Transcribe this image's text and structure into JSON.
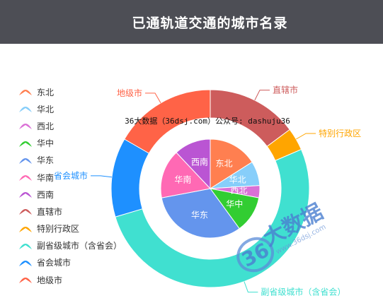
{
  "header": {
    "title": "已通轨道交通的城市名录"
  },
  "watermark": {
    "text": "36大数据（36dsj.com）公众号: dashuju36",
    "logo_number": "36",
    "logo_text": "大数据",
    "logo_url": "www.36dsj.com"
  },
  "legend": [
    {
      "label": "东北",
      "color": "#ff7f50"
    },
    {
      "label": "华北",
      "color": "#87cefa"
    },
    {
      "label": "西北",
      "color": "#da70d6"
    },
    {
      "label": "华中",
      "color": "#32cd32"
    },
    {
      "label": "华东",
      "color": "#6495ed"
    },
    {
      "label": "华南",
      "color": "#ff69b4"
    },
    {
      "label": "西南",
      "color": "#ba55d3"
    },
    {
      "label": "直辖市",
      "color": "#cd5c5c"
    },
    {
      "label": "特别行政区",
      "color": "#ffa500"
    },
    {
      "label": "副省级城市（含省会）",
      "color": "#40e0d0"
    },
    {
      "label": "省会城市",
      "color": "#1e90ff"
    },
    {
      "label": "地级市",
      "color": "#ff6347"
    }
  ],
  "chart_data": {
    "type": "pie",
    "inner": {
      "name": "区域",
      "slices": [
        {
          "label": "东北",
          "value": 4,
          "color": "#ff7f50"
        },
        {
          "label": "华北",
          "value": 2,
          "color": "#87cefa"
        },
        {
          "label": "西北",
          "value": 1,
          "color": "#da70d6"
        },
        {
          "label": "华中",
          "value": 3,
          "color": "#32cd32"
        },
        {
          "label": "华东",
          "value": 8,
          "color": "#6495ed"
        },
        {
          "label": "华南",
          "value": 4,
          "color": "#ff69b4"
        },
        {
          "label": "西南",
          "value": 3,
          "color": "#ba55d3"
        }
      ]
    },
    "outer": {
      "name": "城市级别",
      "slices": [
        {
          "label": "直辖市",
          "value": 4,
          "color": "#cd5c5c"
        },
        {
          "label": "特别行政区",
          "value": 1,
          "color": "#ffa500"
        },
        {
          "label": "副省级城市（含省会）",
          "value": 14,
          "color": "#40e0d0"
        },
        {
          "label": "省会城市",
          "value": 3.5,
          "color": "#1e90ff"
        },
        {
          "label": "地级市",
          "value": 4.5,
          "color": "#ff6347"
        }
      ]
    }
  }
}
